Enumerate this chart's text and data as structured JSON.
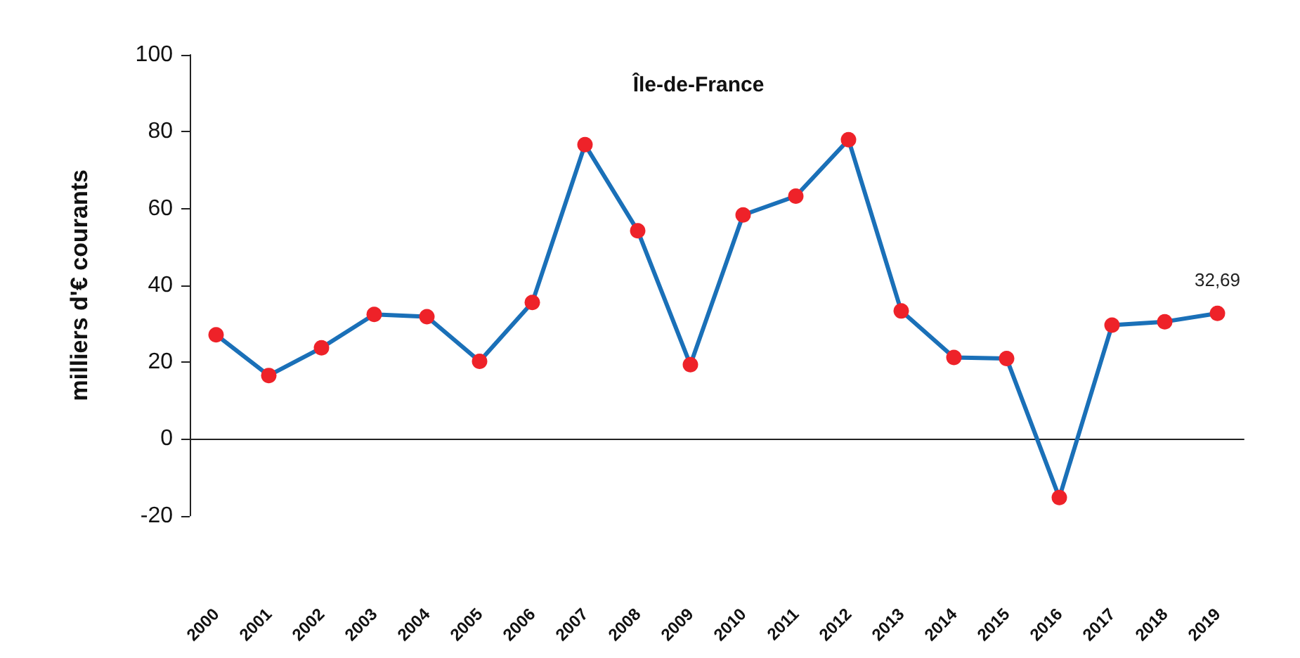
{
  "chart_data": {
    "type": "line",
    "title": "Île-de-France",
    "ylabel": "milliers d'€ courants",
    "categories": [
      "2000",
      "2001",
      "2002",
      "2003",
      "2004",
      "2005",
      "2006",
      "2007",
      "2008",
      "2009",
      "2010",
      "2011",
      "2012",
      "2013",
      "2014",
      "2015",
      "2016",
      "2017",
      "2018",
      "2019"
    ],
    "series": [
      {
        "color": "#1a70b8",
        "values": [
          27.1,
          16.5,
          23.7,
          32.4,
          31.8,
          20.2,
          35.5,
          76.6,
          54.2,
          19.3,
          58.3,
          63.2,
          77.9,
          33.3,
          21.2,
          20.9,
          -15.3,
          29.6,
          30.5,
          32.69
        ],
        "colors": [
          "#ee2229",
          "#ee2229",
          "#ee2229",
          "#ee2229",
          "#ee2229",
          "#ee2229",
          "#ee2229",
          "#ee2229",
          "#ee2229",
          "#ee2229",
          "#ee2229",
          "#ee2229",
          "#ee2229",
          "#ee2229",
          "#ee2229",
          "#ee2229",
          "#ee2229",
          "#ee2229",
          "#ee2229",
          "#ee2229"
        ],
        "value_labels": [
          null,
          null,
          null,
          null,
          null,
          null,
          null,
          null,
          null,
          null,
          null,
          null,
          null,
          null,
          null,
          null,
          null,
          null,
          null,
          "32,69"
        ]
      }
    ],
    "marker": "circle",
    "line_style": "solid",
    "ylim": [
      -20,
      100
    ],
    "yticks": [
      -20,
      0,
      20,
      40,
      60,
      80,
      100
    ]
  }
}
